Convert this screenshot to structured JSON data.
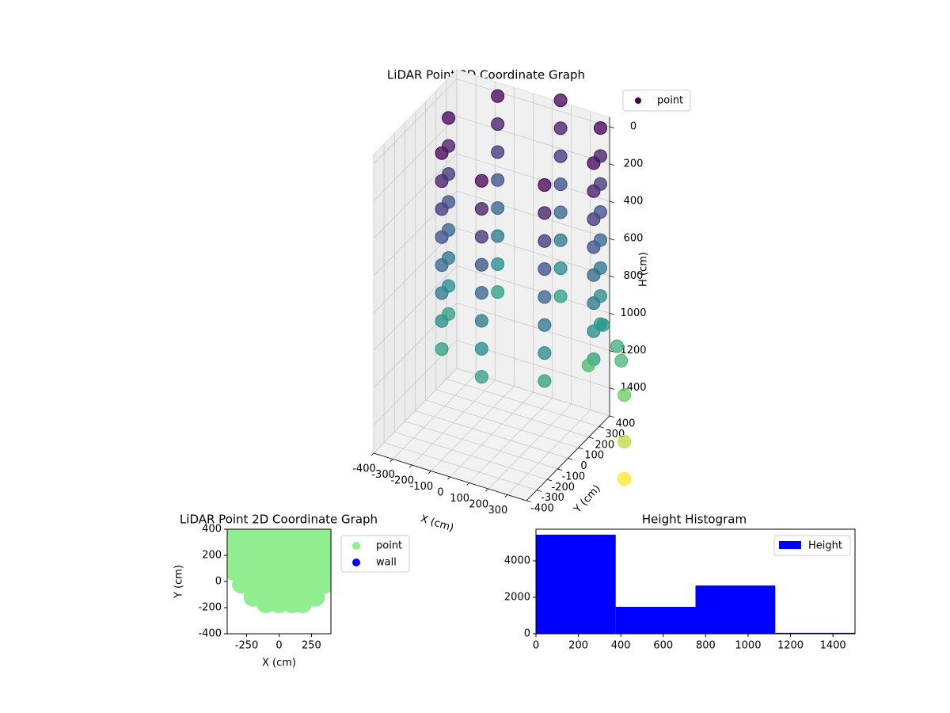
{
  "chart_data": [
    {
      "type": "scatter3d",
      "title": "LiDAR Point 3D Coordinate Graph",
      "xlabel": "X (cm)",
      "ylabel": "Y (cm)",
      "zlabel": "H (cm)",
      "colormap": "viridis",
      "legend": "upper right",
      "grid": true,
      "zinverted": true,
      "xlim": [
        -400,
        400
      ],
      "ylim": [
        -400,
        400
      ],
      "zlim": [
        -50,
        1550
      ],
      "xticks": [
        -400,
        -300,
        -200,
        -100,
        0,
        100,
        200,
        300
      ],
      "yticks": [
        -400,
        -300,
        -200,
        -100,
        0,
        100,
        200,
        300,
        400
      ],
      "zticks": [
        0,
        200,
        400,
        600,
        800,
        1000,
        1200,
        1400
      ],
      "series": [
        {
          "name": "point",
          "x": [
            480,
            369,
            100,
            -169,
            -280,
            -169,
            100,
            369,
            480,
            369,
            100,
            -169,
            -280,
            -169,
            100,
            369,
            480,
            369,
            100,
            -169,
            -280,
            -169,
            100,
            369,
            480,
            369,
            100,
            -169,
            -280,
            -169,
            100,
            369,
            480,
            369,
            100,
            -169,
            -280,
            -169,
            100,
            369,
            480,
            369,
            100,
            -169,
            -280,
            -169,
            100,
            369,
            480,
            369,
            100,
            -169,
            -280,
            -169,
            100,
            369,
            480,
            369,
            100,
            -169,
            -280,
            -169,
            100,
            369,
            420,
            450,
            450,
            300,
            450,
            450,
            450
          ],
          "y": [
            100,
            369,
            480,
            369,
            100,
            -169,
            -280,
            -169,
            100,
            369,
            480,
            369,
            100,
            -169,
            -280,
            -169,
            100,
            369,
            480,
            369,
            100,
            -169,
            -280,
            -169,
            100,
            369,
            480,
            369,
            100,
            -169,
            -280,
            -169,
            100,
            369,
            480,
            369,
            100,
            -169,
            -280,
            -169,
            100,
            369,
            480,
            369,
            100,
            -169,
            -280,
            -169,
            100,
            369,
            480,
            369,
            100,
            -169,
            -280,
            -169,
            100,
            369,
            480,
            369,
            100,
            -169,
            -280,
            -169,
            300,
            380,
            420,
            380,
            450,
            450,
            450
          ],
          "z": [
            0,
            0,
            0,
            0,
            0,
            0,
            0,
            0,
            150,
            150,
            150,
            150,
            150,
            150,
            150,
            150,
            300,
            300,
            300,
            300,
            300,
            300,
            300,
            300,
            450,
            450,
            450,
            450,
            450,
            450,
            450,
            450,
            600,
            600,
            600,
            600,
            600,
            600,
            600,
            600,
            750,
            750,
            750,
            750,
            750,
            750,
            750,
            750,
            900,
            900,
            900,
            900,
            900,
            900,
            900,
            900,
            1050,
            1050,
            1050,
            1050,
            1050,
            1050,
            1050,
            1050,
            1000,
            1150,
            1250,
            1300,
            1450,
            1700,
            1900
          ]
        }
      ]
    },
    {
      "type": "scatter",
      "title": "LiDAR Point 2D Coordinate Graph",
      "xlabel": "X (cm)",
      "ylabel": "Y (cm)",
      "legend": "outside right",
      "xlim": [
        -400,
        400
      ],
      "ylim": [
        -400,
        400
      ],
      "xticks": [
        -250,
        0,
        250
      ],
      "yticks": [
        -400,
        -200,
        0,
        200,
        400
      ],
      "series": [
        {
          "name": "point",
          "color": "#90ee90",
          "x": [
            -350,
            -250,
            -150,
            -50,
            50,
            150,
            250,
            350,
            -350,
            -250,
            -150,
            -50,
            50,
            150,
            250,
            350,
            -350,
            -250,
            -150,
            -50,
            50,
            150,
            250,
            350,
            -350,
            -250,
            -150,
            -50,
            50,
            150,
            250,
            350,
            -290,
            -250,
            -150,
            -50,
            50,
            150,
            250,
            350,
            -200,
            -100,
            0,
            100,
            200,
            280,
            -100,
            0,
            100,
            180
          ],
          "y": [
            380,
            380,
            380,
            380,
            380,
            380,
            380,
            380,
            280,
            280,
            280,
            280,
            280,
            280,
            280,
            280,
            180,
            180,
            180,
            180,
            180,
            180,
            180,
            180,
            80,
            80,
            80,
            80,
            80,
            80,
            80,
            80,
            -20,
            -20,
            -20,
            -20,
            -20,
            -20,
            -20,
            -20,
            -120,
            -120,
            -120,
            -120,
            -120,
            -120,
            -170,
            -170,
            -170,
            -170
          ]
        },
        {
          "name": "wall",
          "color": "#0000ff",
          "x": [],
          "y": []
        }
      ]
    },
    {
      "type": "histogram",
      "title": "Height Histogram",
      "legend": "upper right",
      "series": [
        {
          "name": "Height",
          "color": "#0000ff",
          "bins": [
            0,
            376,
            752,
            1128,
            1504
          ],
          "counts": [
            5440,
            1480,
            2650,
            50
          ]
        }
      ],
      "xlim": [
        0,
        1504
      ],
      "ylim": [
        0,
        5740
      ],
      "xticks": [
        0,
        200,
        400,
        600,
        800,
        1000,
        1200,
        1400
      ],
      "yticks": [
        0,
        2000,
        4000
      ]
    }
  ]
}
